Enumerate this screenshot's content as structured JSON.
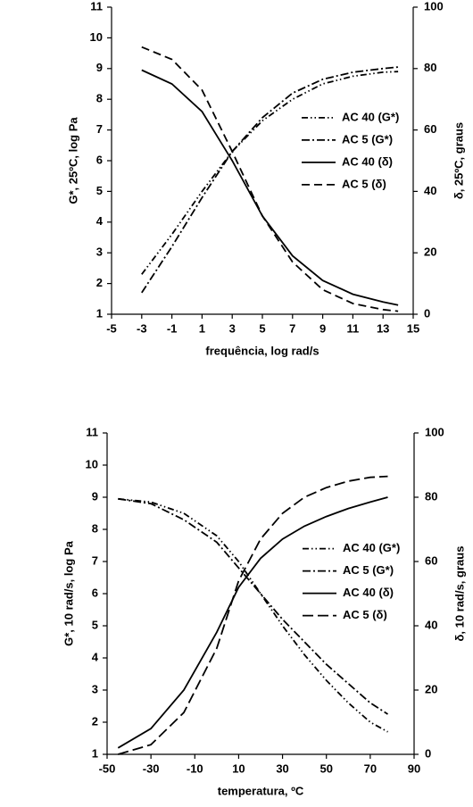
{
  "chart_data": [
    {
      "type": "line",
      "x": [
        -3,
        -1,
        1,
        3,
        5,
        7,
        9,
        11,
        13,
        14
      ],
      "xlim": [
        -5,
        15
      ],
      "xticks": [
        -5,
        -3,
        -1,
        1,
        3,
        5,
        7,
        9,
        11,
        13,
        15
      ],
      "ylim": [
        1,
        11
      ],
      "yticks": [
        1,
        2,
        3,
        4,
        5,
        6,
        7,
        8,
        9,
        10,
        11
      ],
      "y2lim": [
        0,
        100
      ],
      "y2ticks": [
        0,
        20,
        40,
        60,
        80,
        100
      ],
      "xlabel": "frequência, log rad/s",
      "ylabel": "G*, 25ºC, log Pa",
      "y2label": "δ, 25ºC, graus",
      "legend": "right",
      "series": [
        {
          "name": "AC 40 (G*)",
          "color": "#000",
          "dash": "7 3 1.5 3 1.5 3",
          "values": [
            2.3,
            3.6,
            5.0,
            6.3,
            7.3,
            8.0,
            8.5,
            8.75,
            8.88,
            8.9
          ]
        },
        {
          "name": "AC 5 (G*)",
          "color": "#000",
          "dash": "9 3 2 3",
          "values": [
            1.7,
            3.2,
            4.8,
            6.3,
            7.4,
            8.2,
            8.65,
            8.88,
            9.0,
            9.05
          ]
        },
        {
          "name": "AC 40 (δ)",
          "color": "#000",
          "dash": "none",
          "axis": "y2",
          "values": [
            79.5,
            75,
            66,
            50,
            32,
            19,
            11,
            6.5,
            4,
            3
          ]
        },
        {
          "name": "AC  5 (δ)",
          "color": "#000",
          "dash": "9 5",
          "axis": "y2",
          "values": [
            87,
            83,
            73,
            53,
            32,
            17,
            8,
            3.5,
            1.5,
            1
          ]
        }
      ]
    },
    {
      "type": "line",
      "x": [
        -45,
        -30,
        -15,
        0,
        10,
        20,
        30,
        40,
        50,
        60,
        70,
        78
      ],
      "xlim": [
        -50,
        90
      ],
      "xticks": [
        -50,
        -30,
        -10,
        10,
        30,
        50,
        70,
        90
      ],
      "ylim": [
        1,
        11
      ],
      "yticks": [
        1,
        2,
        3,
        4,
        5,
        6,
        7,
        8,
        9,
        10,
        11
      ],
      "y2lim": [
        0,
        100
      ],
      "y2ticks": [
        0,
        20,
        40,
        60,
        80,
        100
      ],
      "xlabel": "temperatura, ºC",
      "ylabel": "G*, 10 rad/s, log Pa",
      "y2label": "δ, 10 rad/s, graus",
      "legend": "right",
      "series": [
        {
          "name": "AC 40 (G*)",
          "color": "#000",
          "dash": "7 3 1.5 3 1.5 3",
          "values": [
            8.95,
            8.85,
            8.5,
            7.8,
            7.0,
            6.0,
            5.0,
            4.1,
            3.3,
            2.6,
            2.0,
            1.7
          ]
        },
        {
          "name": "AC 5 (G*)",
          "color": "#000",
          "dash": "9 3 2 3",
          "values": [
            8.95,
            8.8,
            8.3,
            7.6,
            6.8,
            6.0,
            5.2,
            4.5,
            3.8,
            3.2,
            2.6,
            2.25
          ]
        },
        {
          "name": "AC 40 (δ)",
          "color": "#000",
          "dash": "none",
          "axis": "y2",
          "values": [
            2,
            8,
            20,
            38,
            52,
            61,
            67,
            71,
            74,
            76.5,
            78.5,
            80
          ]
        },
        {
          "name": "AC  5 (δ)",
          "color": "#000",
          "dash": "12 5",
          "axis": "y2",
          "values": [
            0,
            3,
            13,
            33,
            54,
            67,
            75,
            80,
            83,
            85,
            86.2,
            86.5
          ]
        }
      ]
    }
  ]
}
